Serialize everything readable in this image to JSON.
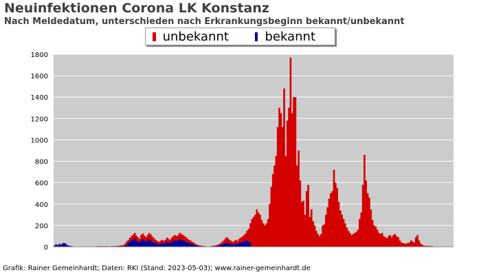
{
  "header": {
    "title": "Neuinfektionen Corona LK Konstanz",
    "subtitle": "Nach Meldedatum, unterschieden nach Erkrankungsbeginn bekannt/unbekannt"
  },
  "legend": {
    "items": [
      {
        "label": "unbekannt",
        "color": "#d40000"
      },
      {
        "label": "bekannt",
        "color": "#000099"
      }
    ]
  },
  "footer": {
    "credit": "Grafik: Rainer Gemeinhardt; Daten: RKI (Stand: 2023-05-03); www.rainer-gemeinhardt.de"
  },
  "chart_data": {
    "type": "bar",
    "stacked": true,
    "ylim": [
      0,
      1800
    ],
    "yticks": [
      0,
      200,
      400,
      600,
      800,
      1000,
      1200,
      1400,
      1600,
      1800
    ],
    "grid": true,
    "background": "#cccccc",
    "series": [
      {
        "name": "unbekannt",
        "color": "#d40000",
        "values": [
          2,
          5,
          2,
          3,
          1,
          3,
          2,
          1,
          0,
          1,
          0,
          0,
          0,
          0,
          0,
          0,
          0,
          0,
          0,
          0,
          0,
          0,
          0,
          1,
          2,
          3,
          4,
          5,
          6,
          6,
          5,
          5,
          6,
          5,
          4,
          5,
          6,
          7,
          6,
          8,
          10,
          12,
          15,
          10,
          20,
          30,
          25,
          35,
          40,
          45,
          50,
          45,
          40,
          35,
          50,
          55,
          45,
          40,
          50,
          60,
          55,
          45,
          40,
          30,
          25,
          20,
          25,
          30,
          25,
          30,
          40,
          35,
          30,
          40,
          45,
          50,
          45,
          50,
          60,
          55,
          50,
          45,
          40,
          35,
          30,
          25,
          20,
          15,
          10,
          8,
          6,
          5,
          4,
          3,
          3,
          2,
          2,
          3,
          4,
          5,
          6,
          8,
          10,
          15,
          20,
          30,
          40,
          50,
          45,
          35,
          30,
          25,
          30,
          35,
          30,
          40,
          45,
          50,
          60,
          70,
          90,
          120,
          180,
          260,
          280,
          300,
          350,
          320,
          300,
          250,
          220,
          200,
          220,
          260,
          400,
          560,
          680,
          760,
          850,
          1120,
          1300,
          1250,
          1120,
          1480,
          850,
          1180,
          1300,
          1770,
          1250,
          1400,
          1400,
          760,
          900,
          620,
          420,
          430,
          300,
          520,
          580,
          280,
          350,
          240,
          200,
          150,
          120,
          100,
          120,
          200,
          210,
          300,
          370,
          450,
          500,
          520,
          720,
          600,
          550,
          420,
          340,
          300,
          260,
          220,
          180,
          150,
          130,
          110,
          120,
          130,
          140,
          160,
          260,
          320,
          580,
          860,
          620,
          500,
          460,
          350,
          250,
          200,
          190,
          160,
          130,
          120,
          130,
          100,
          90,
          80,
          100,
          110,
          90,
          110,
          120,
          100,
          90,
          60,
          40,
          35,
          30,
          30,
          35,
          40,
          60,
          50,
          40,
          90,
          110,
          60,
          30,
          20,
          10,
          8,
          10,
          5,
          8,
          6,
          4,
          3,
          3
        ]
      },
      {
        "name": "bekannt",
        "color": "#000099",
        "values": [
          10,
          20,
          15,
          25,
          20,
          30,
          35,
          28,
          15,
          10,
          8,
          5,
          3,
          2,
          1,
          1,
          0,
          0,
          0,
          0,
          0,
          0,
          0,
          0,
          0,
          0,
          0,
          0,
          0,
          0,
          0,
          0,
          0,
          0,
          0,
          0,
          0,
          0,
          0,
          0,
          0,
          0,
          0,
          5,
          10,
          20,
          40,
          50,
          60,
          70,
          80,
          60,
          50,
          40,
          60,
          70,
          60,
          50,
          60,
          70,
          60,
          50,
          40,
          35,
          30,
          25,
          30,
          35,
          30,
          35,
          45,
          40,
          35,
          45,
          55,
          60,
          55,
          60,
          70,
          65,
          60,
          55,
          50,
          40,
          35,
          30,
          25,
          20,
          15,
          10,
          8,
          6,
          5,
          3,
          2,
          1,
          1,
          2,
          3,
          5,
          6,
          8,
          10,
          15,
          20,
          25,
          30,
          40,
          35,
          30,
          25,
          20,
          25,
          30,
          25,
          35,
          40,
          45,
          50,
          55,
          60,
          50,
          40,
          0,
          0,
          0,
          0,
          0,
          0,
          0,
          0,
          0,
          0,
          0,
          0,
          0,
          0,
          0,
          0,
          0,
          0,
          0,
          0,
          0,
          0,
          0,
          0,
          0,
          0,
          0,
          0,
          0,
          0,
          0,
          0,
          0,
          0,
          0,
          0,
          0,
          0,
          0,
          0,
          0,
          0,
          0,
          0,
          0,
          0,
          0,
          0,
          0,
          0,
          0,
          0,
          0,
          0,
          0,
          0,
          0,
          0,
          0,
          0,
          0,
          0,
          0,
          0,
          0,
          0,
          0,
          0,
          0,
          0,
          0,
          0,
          0,
          0,
          0,
          0,
          0,
          0,
          0,
          0,
          0,
          0,
          0,
          0,
          0,
          0,
          0,
          0,
          0,
          0,
          0,
          0,
          0,
          0,
          0,
          0,
          0,
          0,
          0,
          0,
          0,
          0,
          0,
          0,
          0,
          0,
          0,
          0,
          0,
          0,
          0,
          0,
          0,
          0,
          0,
          0,
          0,
          0,
          0,
          0,
          0,
          0,
          0,
          0,
          0,
          0
        ]
      }
    ]
  }
}
